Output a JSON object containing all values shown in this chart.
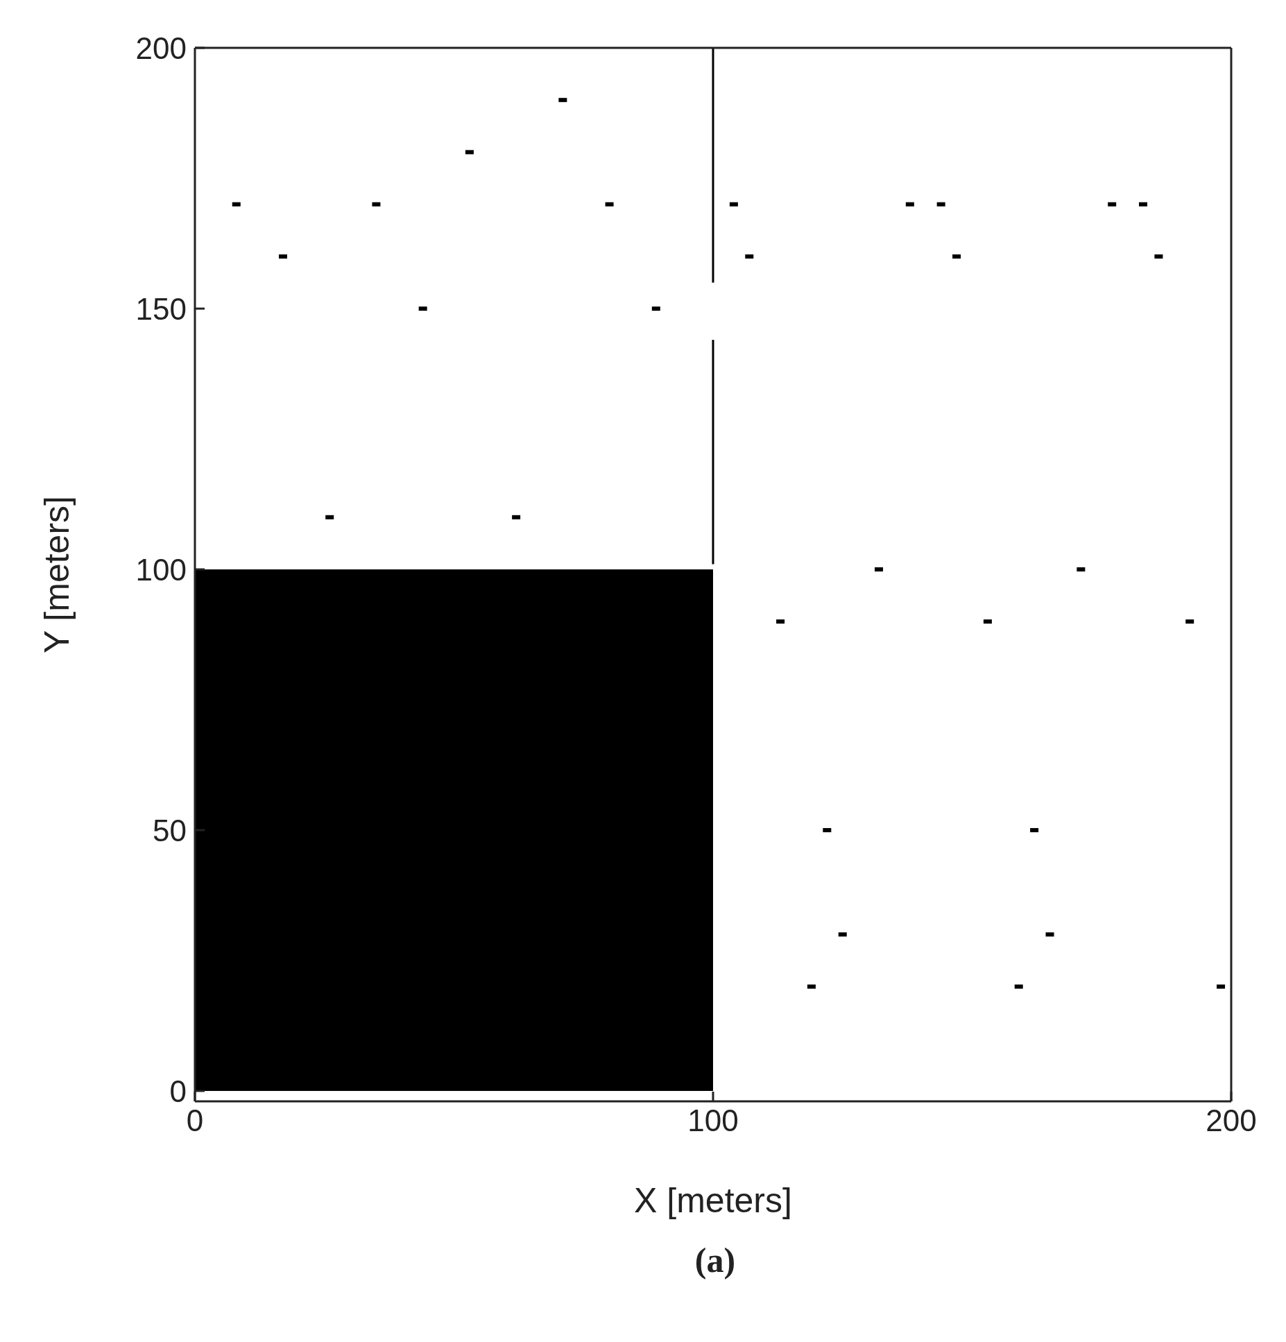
{
  "chart_data": {
    "type": "scatter",
    "xlabel": "X [meters]",
    "ylabel": "Y [meters]",
    "annotations": [
      "(a)"
    ],
    "xlim": [
      0,
      200
    ],
    "ylim": [
      -2,
      200
    ],
    "xticks": [
      0,
      100,
      200
    ],
    "yticks": [
      0,
      50,
      100,
      150,
      200
    ],
    "series": [
      {
        "type": "histogram",
        "color": "#000000",
        "bins": [
          0,
          100
        ],
        "values": [
          100
        ]
      },
      {
        "type": "line",
        "color": "#000000",
        "x": [
          100,
          100
        ],
        "values": [
          101,
          144
        ]
      },
      {
        "type": "line",
        "color": "#000000",
        "x": [
          100,
          100
        ],
        "values": [
          155,
          200
        ]
      },
      {
        "marker": "square",
        "color": "#000000",
        "x": [
          8,
          35,
          80,
          104,
          138,
          144,
          177,
          183,
          17,
          107,
          147,
          186,
          44,
          89,
          53,
          71,
          26,
          62,
          132,
          171,
          113,
          153,
          192,
          122,
          162,
          125,
          165,
          119,
          159,
          198
        ],
        "values": [
          170,
          170,
          170,
          170,
          170,
          170,
          170,
          170,
          160,
          160,
          160,
          160,
          150,
          150,
          180,
          190,
          110,
          110,
          100,
          100,
          90,
          90,
          90,
          50,
          50,
          30,
          30,
          20,
          20,
          20
        ]
      }
    ]
  }
}
